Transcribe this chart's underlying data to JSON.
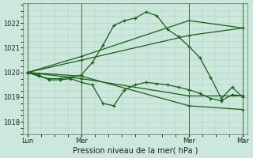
{
  "background_color": "#cce8dc",
  "plot_bg_color": "#cce8dc",
  "grid_color": "#aacaba",
  "line_color": "#1a5c1a",
  "title": "Pression niveau de la mer( hPa )",
  "ylabel_values": [
    1018,
    1019,
    1020,
    1021,
    1022
  ],
  "ylim": [
    1017.5,
    1022.8
  ],
  "x_tick_positions": [
    0,
    0.25,
    0.75,
    1.0
  ],
  "x_tick_labels": [
    "Lun",
    "Mer",
    "Mer",
    "Mar"
  ],
  "x_vlines": [
    0.0,
    0.25,
    0.75,
    1.0
  ],
  "series": [
    {
      "x": [
        0.0,
        0.05,
        0.1,
        0.15,
        0.2,
        0.25,
        0.3,
        0.35,
        0.4,
        0.45,
        0.5,
        0.55,
        0.6,
        0.65,
        0.7,
        0.75,
        0.8,
        0.85,
        0.9,
        0.95,
        1.0
      ],
      "y": [
        1020.0,
        1019.9,
        1019.7,
        1019.7,
        1019.75,
        1019.6,
        1019.5,
        1018.75,
        1018.65,
        1019.3,
        1019.5,
        1019.6,
        1019.55,
        1019.5,
        1019.4,
        1019.3,
        1019.15,
        1018.95,
        1018.85,
        1019.1,
        1019.05
      ]
    },
    {
      "x": [
        0.0,
        0.25,
        0.75,
        1.0
      ],
      "y": [
        1020.0,
        1020.5,
        1021.5,
        1021.8
      ]
    },
    {
      "x": [
        0.0,
        0.25,
        0.75,
        1.0
      ],
      "y": [
        1020.0,
        1020.65,
        1022.1,
        1021.8
      ]
    },
    {
      "x": [
        0.0,
        0.05,
        0.1,
        0.15,
        0.2,
        0.25,
        0.3,
        0.35,
        0.4,
        0.45,
        0.5,
        0.55,
        0.6,
        0.65,
        0.7,
        0.75,
        0.8,
        0.85,
        0.9,
        0.95,
        1.0
      ],
      "y": [
        1020.0,
        1019.85,
        1019.75,
        1019.75,
        1019.8,
        1019.9,
        1020.4,
        1021.1,
        1021.9,
        1022.1,
        1022.2,
        1022.45,
        1022.3,
        1021.75,
        1021.45,
        1021.05,
        1020.6,
        1019.8,
        1018.95,
        1019.4,
        1019.0
      ]
    },
    {
      "x": [
        0.0,
        0.25,
        0.75,
        1.0
      ],
      "y": [
        1020.0,
        1019.85,
        1018.65,
        1018.5
      ]
    },
    {
      "x": [
        0.0,
        0.25,
        0.75,
        1.0
      ],
      "y": [
        1020.0,
        1019.75,
        1019.05,
        1019.05
      ]
    }
  ]
}
